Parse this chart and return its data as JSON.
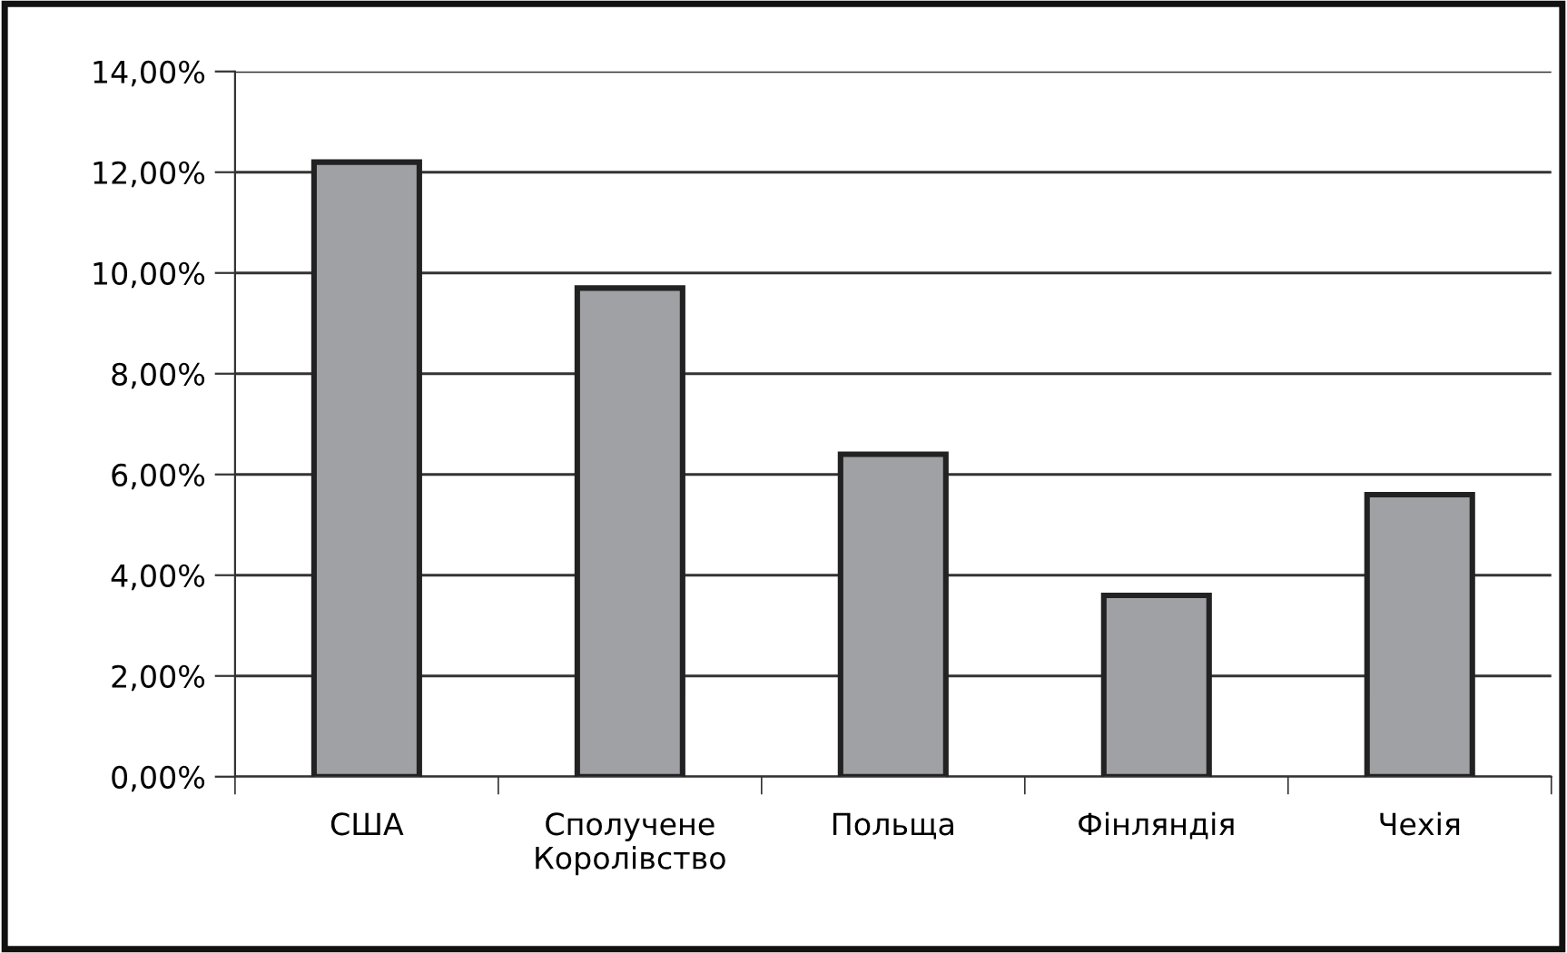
{
  "chart_data": {
    "type": "bar",
    "categories": [
      "США",
      "Сполучене\nКоролівство",
      "Польща",
      "Фінляндія",
      "Чехія"
    ],
    "values": [
      12.2,
      9.7,
      6.4,
      3.6,
      5.6
    ],
    "color": "#a0a1a4",
    "ylim": [
      0,
      14
    ],
    "yticks": [
      {
        "value": 0,
        "label": "0,00%"
      },
      {
        "value": 2,
        "label": "2,00%"
      },
      {
        "value": 4,
        "label": "4,00%"
      },
      {
        "value": 6,
        "label": "6,00%"
      },
      {
        "value": 8,
        "label": "8,00%"
      },
      {
        "value": 10,
        "label": "10,00%"
      },
      {
        "value": 12,
        "label": "12,00%"
      },
      {
        "value": 14,
        "label": "14,00%"
      }
    ],
    "grid": "y"
  }
}
